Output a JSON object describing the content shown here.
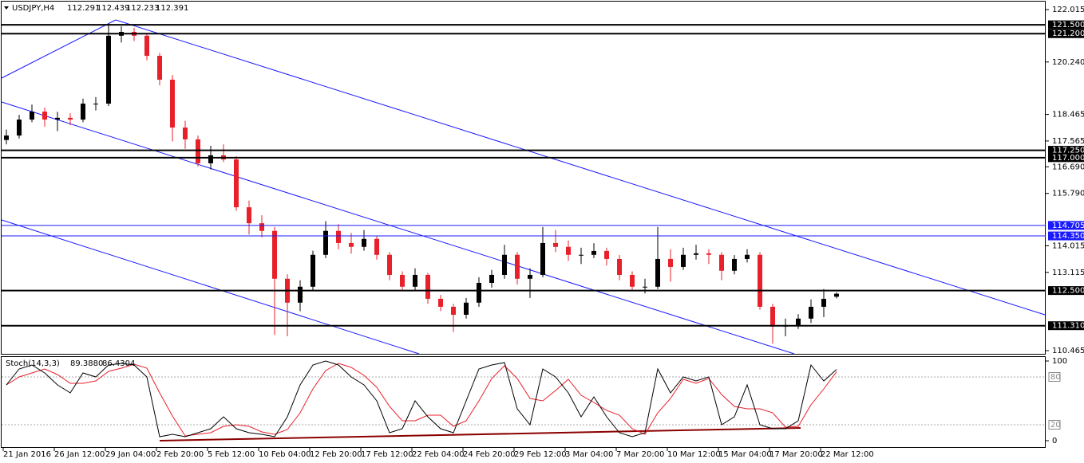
{
  "chart_data": {
    "type": "candlestick",
    "symbol": "USDJPY,H4",
    "ohlc_header": [
      112.291,
      112.439,
      112.233,
      112.391
    ],
    "colors": {
      "up": "#000000",
      "down": "#e8202a",
      "channel": "#1a1aff",
      "level": "#000000",
      "level_alt": "#1a1aff"
    },
    "candles": [
      [
        117.6,
        117.95,
        117.45,
        117.75
      ],
      [
        117.75,
        118.45,
        117.65,
        118.29
      ],
      [
        118.29,
        118.8,
        118.2,
        118.56
      ],
      [
        118.56,
        118.7,
        118.05,
        118.29
      ],
      [
        118.29,
        118.55,
        117.9,
        118.35
      ],
      [
        118.35,
        118.5,
        118.1,
        118.29
      ],
      [
        118.29,
        119.0,
        118.2,
        118.83
      ],
      [
        118.83,
        119.05,
        118.6,
        118.83
      ],
      [
        118.83,
        121.5,
        118.75,
        121.13
      ],
      [
        121.13,
        121.45,
        120.9,
        121.26
      ],
      [
        121.26,
        121.4,
        120.95,
        121.13
      ],
      [
        121.13,
        121.2,
        120.3,
        120.45
      ],
      [
        120.45,
        120.55,
        119.45,
        119.64
      ],
      [
        119.64,
        119.8,
        117.55,
        118.02
      ],
      [
        118.02,
        118.25,
        117.3,
        117.62
      ],
      [
        117.62,
        117.75,
        116.7,
        116.81
      ],
      [
        116.81,
        117.4,
        116.6,
        117.08
      ],
      [
        117.08,
        117.45,
        116.85,
        116.94
      ],
      [
        116.94,
        117.05,
        115.2,
        115.32
      ],
      [
        115.32,
        115.55,
        114.4,
        114.78
      ],
      [
        114.78,
        115.05,
        114.3,
        114.52
      ],
      [
        114.52,
        114.65,
        111.0,
        112.9
      ],
      [
        112.9,
        113.05,
        110.95,
        112.09
      ],
      [
        112.09,
        112.85,
        111.8,
        112.63
      ],
      [
        112.63,
        113.85,
        112.5,
        113.71
      ],
      [
        113.71,
        114.85,
        113.6,
        114.52
      ],
      [
        114.52,
        114.75,
        113.9,
        114.11
      ],
      [
        114.11,
        114.45,
        113.75,
        113.98
      ],
      [
        113.98,
        114.55,
        113.85,
        114.25
      ],
      [
        114.25,
        114.35,
        113.55,
        113.71
      ],
      [
        113.71,
        113.8,
        112.85,
        113.03
      ],
      [
        113.03,
        113.15,
        112.5,
        112.63
      ],
      [
        112.63,
        113.25,
        112.5,
        113.03
      ],
      [
        113.03,
        113.1,
        112.05,
        112.22
      ],
      [
        112.22,
        112.35,
        111.8,
        111.95
      ],
      [
        111.95,
        112.05,
        111.1,
        111.68
      ],
      [
        111.68,
        112.25,
        111.55,
        112.09
      ],
      [
        112.09,
        112.95,
        111.95,
        112.76
      ],
      [
        112.76,
        113.2,
        112.6,
        113.03
      ],
      [
        113.03,
        114.05,
        112.9,
        113.71
      ],
      [
        113.71,
        113.8,
        112.7,
        112.9
      ],
      [
        112.9,
        113.25,
        112.25,
        113.03
      ],
      [
        113.03,
        114.65,
        112.95,
        114.11
      ],
      [
        114.11,
        114.55,
        113.8,
        113.98
      ],
      [
        113.98,
        114.2,
        113.5,
        113.71
      ],
      [
        113.71,
        113.95,
        113.4,
        113.71
      ],
      [
        113.71,
        114.1,
        113.6,
        113.84
      ],
      [
        113.84,
        113.95,
        113.35,
        113.57
      ],
      [
        113.57,
        113.7,
        112.85,
        113.03
      ],
      [
        113.03,
        113.15,
        112.5,
        112.63
      ],
      [
        112.63,
        112.9,
        112.4,
        112.63
      ],
      [
        112.63,
        114.65,
        112.55,
        113.57
      ],
      [
        113.57,
        113.9,
        112.8,
        113.3
      ],
      [
        113.3,
        113.95,
        113.2,
        113.71
      ],
      [
        113.71,
        114.05,
        113.55,
        113.76
      ],
      [
        113.76,
        113.9,
        113.4,
        113.71
      ],
      [
        113.71,
        113.8,
        112.85,
        113.17
      ],
      [
        113.17,
        113.7,
        113.05,
        113.57
      ],
      [
        113.57,
        113.9,
        113.45,
        113.71
      ],
      [
        113.71,
        113.8,
        111.85,
        111.95
      ],
      [
        111.95,
        112.05,
        110.7,
        111.28
      ],
      [
        111.28,
        111.55,
        110.95,
        111.33
      ],
      [
        111.33,
        111.7,
        111.2,
        111.55
      ],
      [
        111.55,
        112.2,
        111.4,
        111.95
      ],
      [
        111.95,
        112.55,
        111.6,
        112.22
      ],
      [
        112.291,
        112.439,
        112.233,
        112.391
      ]
    ],
    "ylim": [
      110.33,
      122.34
    ],
    "yticks": [
      122.015,
      {
        "value": 120.24,
        "label": "120.240"
      },
      118.465,
      117.565,
      {
        "value": 116.69,
        "label": "116.690"
      },
      {
        "value": 115.79,
        "label": "115.790"
      },
      114.015,
      113.115,
      110.465
    ],
    "levels": [
      {
        "value": 121.5,
        "label": "121.500"
      },
      {
        "value": 121.2,
        "label": "121.200"
      },
      {
        "value": 117.25,
        "label": "117.250"
      },
      {
        "value": 117,
        "label": "117.000"
      },
      {
        "value": 114.705,
        "label": "114.705",
        "alt": true
      },
      {
        "value": 114.35,
        "label": "114.350",
        "alt": true
      },
      {
        "value": 112.5,
        "label": "112.500"
      },
      {
        "value": 111.31,
        "label": "111.310"
      }
    ],
    "x_tick_labels": [
      "21 Jan 2016",
      "26 Jan 12:00",
      "29 Jan 04:00",
      "2 Feb 20:00",
      "5 Feb 12:00",
      "10 Feb 04:00",
      "12 Feb 20:00",
      "17 Feb 12:00",
      "22 Feb 04:00",
      "24 Feb 20:00",
      "29 Feb 12:00",
      "3 Mar 04:00",
      "7 Mar 20:00",
      "10 Mar 12:00",
      "15 Mar 04:00",
      "17 Mar 20:00",
      "22 Mar 12:00"
    ],
    "indicator": {
      "title": "Stoch(14,3,3)",
      "main_value": {
        "value": 89.388,
        "label": "89.3880"
      },
      "signal_value": 86.4304,
      "ylim": [
        -9,
        105
      ],
      "yticks": [
        100,
        0
      ],
      "levels": [
        80,
        20
      ],
      "main": {
        "color": "#000000",
        "values": [
          70,
          90,
          95,
          85,
          70,
          60,
          85,
          80,
          95,
          97,
          95,
          80,
          5,
          8,
          5,
          10,
          15,
          30,
          15,
          10,
          8,
          5,
          30,
          70,
          95,
          100,
          95,
          80,
          70,
          50,
          10,
          15,
          50,
          30,
          15,
          10,
          50,
          90,
          95,
          98,
          40,
          20,
          90,
          80,
          60,
          30,
          55,
          30,
          10,
          5,
          10,
          90,
          60,
          80,
          75,
          80,
          20,
          30,
          70,
          20,
          15,
          15,
          25,
          95,
          75,
          89.388
        ]
      },
      "signal": {
        "color": "#e8202a",
        "values": [
          70,
          80,
          85,
          90,
          83,
          72,
          72,
          75,
          87,
          91,
          96,
          91,
          60,
          31,
          6,
          8,
          10,
          18,
          20,
          18,
          11,
          8,
          14,
          35,
          65,
          88,
          97,
          92,
          82,
          67,
          43,
          25,
          25,
          32,
          32,
          18,
          25,
          50,
          78,
          94,
          78,
          53,
          50,
          63,
          77,
          57,
          48,
          38,
          32,
          15,
          8,
          35,
          53,
          77,
          72,
          78,
          58,
          43,
          40,
          40,
          35,
          17,
          18,
          45,
          65,
          86.4304
        ]
      }
    }
  }
}
